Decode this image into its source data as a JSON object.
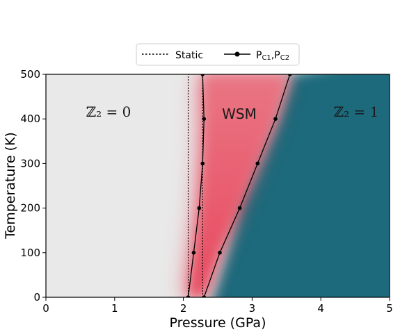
{
  "chart_data": {
    "type": "line",
    "xlabel": "Pressure (GPa)",
    "ylabel": "Temperature (K)",
    "xlim": [
      0,
      5
    ],
    "ylim": [
      0,
      500
    ],
    "xticks": [
      "0",
      "1",
      "2",
      "3",
      "4",
      "5"
    ],
    "yticks": [
      "0",
      "100",
      "200",
      "300",
      "400",
      "500"
    ],
    "legend": {
      "placement": "top-center",
      "entries": [
        {
          "label": "Static",
          "style": "dotted"
        },
        {
          "label_main": "P",
          "sub1": "C1",
          "sep": ",P",
          "sub2": "C2",
          "style": "solid-marker"
        }
      ]
    },
    "regions": {
      "trivial": {
        "label": "ℤ₂ = 0",
        "color": "#e9e9e9"
      },
      "wsm": {
        "label": "WSM",
        "color": "#e8485e"
      },
      "topological": {
        "label": "ℤ₂ = 1",
        "color": "#1d6b7b"
      }
    },
    "series": [
      {
        "key": "pc1",
        "style": "solid-marker",
        "x": [
          2.07,
          2.15,
          2.23,
          2.28,
          2.3,
          2.28
        ],
        "y": [
          0,
          100,
          200,
          300,
          400,
          500
        ]
      },
      {
        "key": "pc2",
        "style": "solid-marker",
        "x": [
          2.3,
          2.53,
          2.82,
          3.08,
          3.34,
          3.55
        ],
        "y": [
          0,
          100,
          200,
          300,
          400,
          500
        ]
      },
      {
        "key": "static1",
        "style": "dotted",
        "x": [
          2.07,
          2.07
        ],
        "y": [
          0,
          500
        ]
      },
      {
        "key": "static2",
        "style": "dotted",
        "x": [
          2.28,
          2.28
        ],
        "y": [
          0,
          500
        ]
      }
    ]
  }
}
